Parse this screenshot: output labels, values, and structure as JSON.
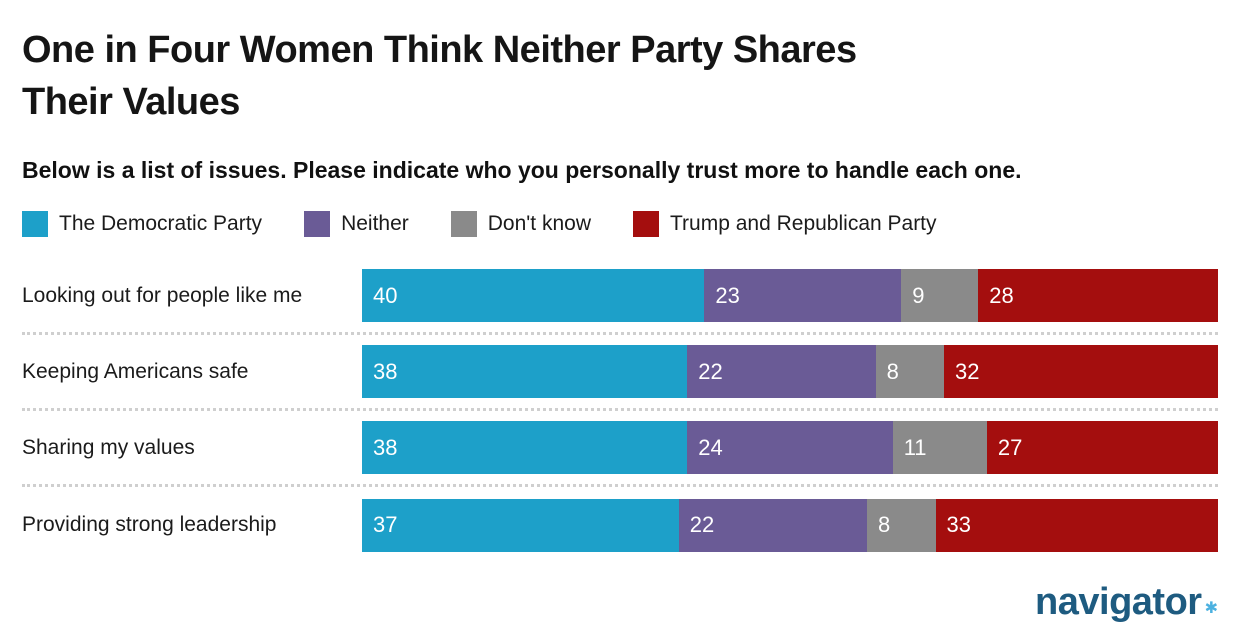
{
  "header": {
    "title_lines": [
      "One in Four Women Think Neither Party Shares",
      "Their Values"
    ],
    "subtitle": "Below is a list of issues. Please indicate who you personally trust more to handle each one."
  },
  "colors": {
    "democratic": "#1da0c9",
    "neither": "#6a5b96",
    "dont_know": "#8a8a8a",
    "republican": "#a40e0e",
    "separator": "#cfcfcf",
    "logo_text": "#1e5b80",
    "logo_mark": "#4cb1e0"
  },
  "chart_data": {
    "type": "bar",
    "orientation": "horizontal_stacked",
    "title": "One in Four Women Think Neither Party Shares Their Values",
    "subtitle": "Below is a list of issues. Please indicate who you personally trust more to handle each one.",
    "categories": [
      "Looking out for people like me",
      "Keeping Americans safe",
      "Sharing my values",
      "Providing strong leadership"
    ],
    "series": [
      {
        "name": "The Democratic Party",
        "color": "#1da0c9",
        "values": [
          40,
          38,
          38,
          37
        ]
      },
      {
        "name": "Neither",
        "color": "#6a5b96",
        "values": [
          23,
          22,
          24,
          22
        ]
      },
      {
        "name": "Don't know",
        "color": "#8a8a8a",
        "values": [
          9,
          8,
          11,
          8
        ]
      },
      {
        "name": "Trump and Republican Party",
        "color": "#a40e0e",
        "values": [
          28,
          32,
          27,
          33
        ]
      }
    ],
    "xlim": [
      0,
      100
    ],
    "value_labels": "inside_left",
    "legend_position": "top",
    "grid": false
  },
  "footer": {
    "logo_text": "navigator",
    "logo_mark": "✱"
  }
}
